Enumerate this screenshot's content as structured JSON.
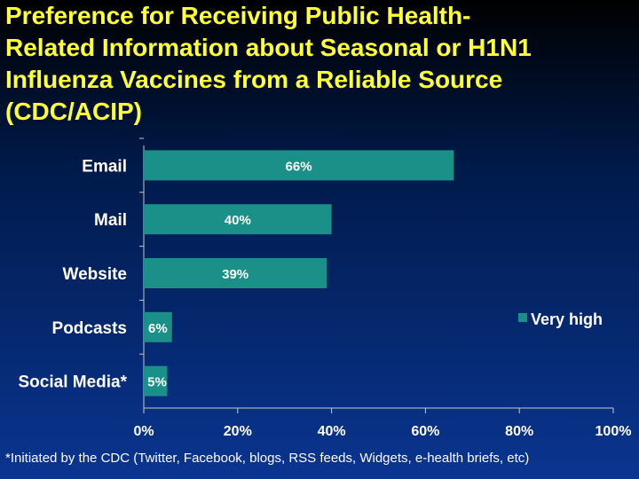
{
  "chart_data": {
    "type": "bar",
    "orientation": "horizontal",
    "title": "Preference for Receiving Public Health-Related Information about Seasonal or H1N1 Influenza Vaccines from a Reliable Source (CDC/ACIP)",
    "title_lines": [
      "Preference for Receiving Public Health-",
      "Related Information about Seasonal or H1N1",
      "Influenza Vaccines from a Reliable Source",
      "(CDC/ACIP)"
    ],
    "categories": [
      "Email",
      "Mail",
      "Website",
      "Podcasts",
      "Social Media*"
    ],
    "series": [
      {
        "name": "Very high",
        "values": [
          66,
          40,
          39,
          6,
          5
        ],
        "data_labels": [
          "66%",
          "40%",
          "39%",
          "6%",
          "5%"
        ]
      }
    ],
    "xlim": [
      0,
      100
    ],
    "x_ticks": [
      0,
      20,
      40,
      60,
      80,
      100
    ],
    "x_tick_labels": [
      "0%",
      "20%",
      "40%",
      "60%",
      "80%",
      "100%"
    ],
    "grid": false,
    "legend_position": "right",
    "footnote": "*Initiated by the CDC (Twitter, Facebook, blogs, RSS feeds, Widgets, e-health briefs, etc)",
    "colors": {
      "bar": "#1a9088",
      "title": "#ffff33",
      "text": "#ffffff",
      "axis": "#c8c8c8"
    }
  }
}
